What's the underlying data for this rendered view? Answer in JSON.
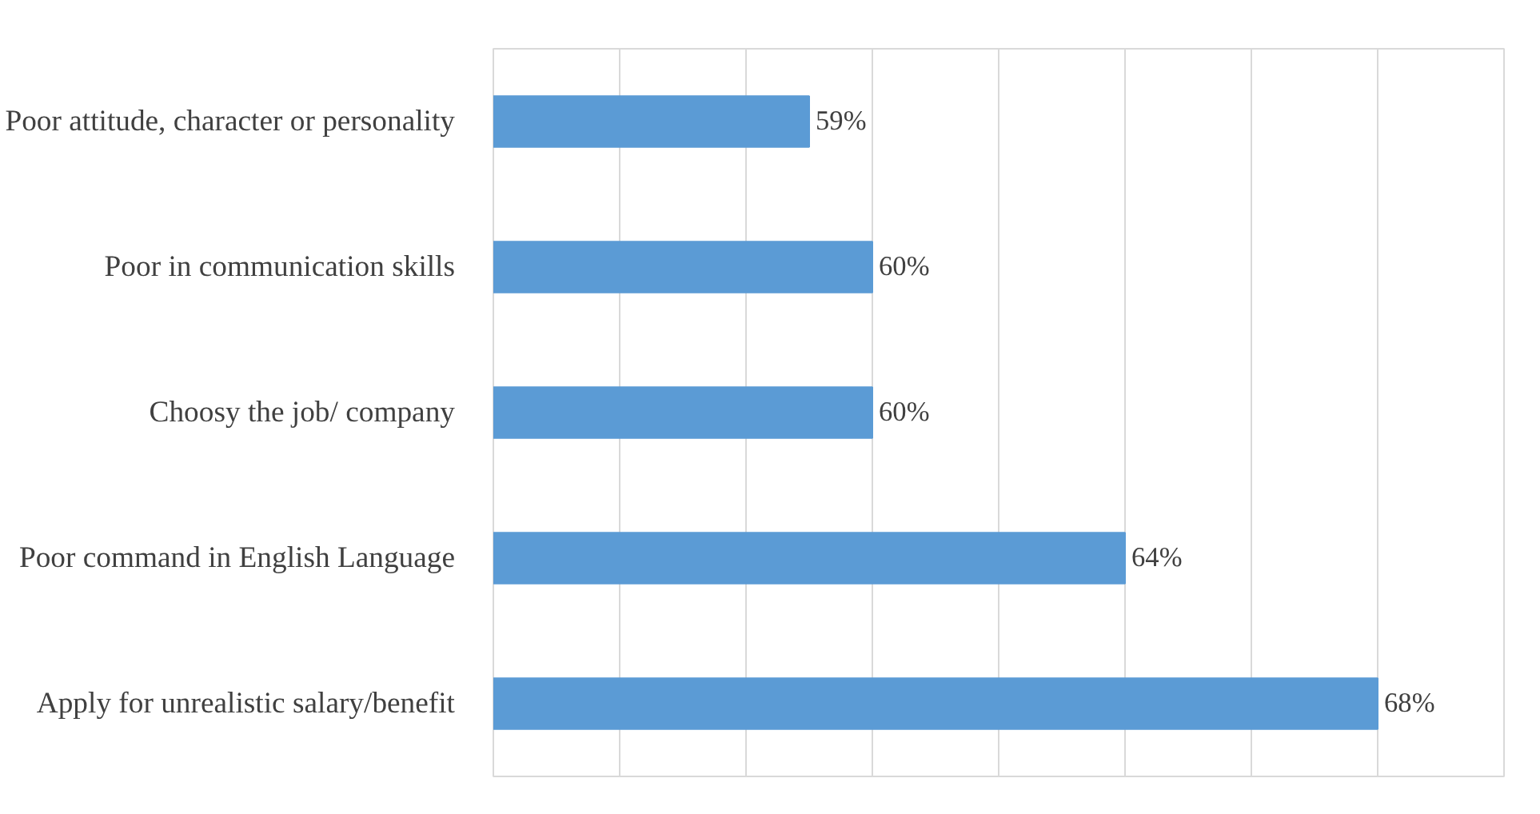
{
  "chart_data": {
    "type": "bar",
    "orientation": "horizontal",
    "categories": [
      "Poor attitude, character or personality",
      "Poor in communication skills",
      "Choosy the job/ company",
      "Poor command in English Language",
      "Apply for unrealistic salary/benefit"
    ],
    "values": [
      59,
      60,
      60,
      64,
      68
    ],
    "color": "#5b9bd5",
    "xlim": [
      54,
      70
    ],
    "xticks": [
      {
        "value": 54,
        "label": null
      },
      {
        "value": 56,
        "label": null
      },
      {
        "value": 58,
        "label": null
      },
      {
        "value": 60,
        "label": null
      },
      {
        "value": 62,
        "label": null
      },
      {
        "value": 64,
        "label": null
      },
      {
        "value": 66,
        "label": null
      },
      {
        "value": 68,
        "label": null
      },
      {
        "value": 70,
        "label": null
      }
    ],
    "value_labels": [
      "59%",
      "60%",
      "60%",
      "64%",
      "68%"
    ],
    "grid": "x",
    "tick_labels": "y"
  }
}
